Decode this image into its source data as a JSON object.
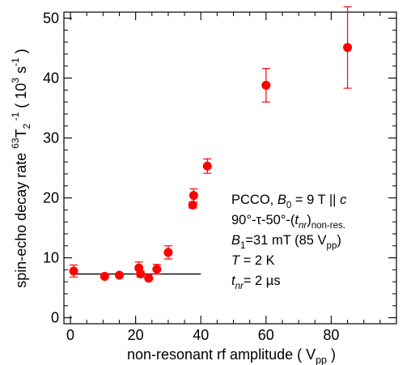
{
  "chart_data": {
    "type": "scatter",
    "xlim": [
      -2,
      100
    ],
    "ylim": [
      -1,
      51
    ],
    "x_ticks": [
      0,
      20,
      40,
      60,
      80
    ],
    "y_ticks": [
      0,
      10,
      20,
      30,
      40,
      50
    ],
    "x_tick_labels": [
      "0",
      "20",
      "40",
      "60",
      "80"
    ],
    "y_tick_labels": [
      "0",
      "10",
      "20",
      "30",
      "40",
      "50"
    ],
    "xlabel": {
      "main": "non-resonant rf amplitude ( V",
      "sub": "pp",
      "tail": " )"
    },
    "ylabel": {
      "lead": "spin-echo decay rate  ",
      "iso_sup": "63",
      "T": "T",
      "sub2": "2",
      "sup_m1": " -1",
      "paren_open": "  ( 10",
      "sup3": "3",
      "s": " s",
      "sup_m1b": "-1",
      "paren_close": " )"
    },
    "points_color": "#ff0000",
    "baseline_color": "#000000",
    "grid": false,
    "points": [
      {
        "x": 1,
        "y": 7.8,
        "err": 1.0
      },
      {
        "x": 10.5,
        "y": 6.9,
        "err": 0.35
      },
      {
        "x": 15,
        "y": 7.1,
        "err": 0.3
      },
      {
        "x": 21,
        "y": 8.3,
        "err": 1.0
      },
      {
        "x": 21.5,
        "y": 7.3,
        "err": 0.5
      },
      {
        "x": 24,
        "y": 6.6,
        "err": 0.3
      },
      {
        "x": 26.5,
        "y": 8.1,
        "err": 0.8
      },
      {
        "x": 30,
        "y": 10.9,
        "err": 1.1
      },
      {
        "x": 37.5,
        "y": 18.8,
        "err": 0.5
      },
      {
        "x": 37.8,
        "y": 20.4,
        "err": 1.1
      },
      {
        "x": 42,
        "y": 25.3,
        "err": 1.2
      },
      {
        "x": 60,
        "y": 38.8,
        "err": 2.8
      },
      {
        "x": 85,
        "y": 45.1,
        "err": 6.8
      }
    ],
    "baseline": {
      "x1": 0,
      "x2": 40,
      "y": 7.3
    },
    "annotations": [
      [
        {
          "t": "PCCO, "
        },
        {
          "t": "B",
          "i": true
        },
        {
          "t": "0",
          "sub": true
        },
        {
          "t": " = 9 T || "
        },
        {
          "t": "c",
          "i": true
        }
      ],
      [
        {
          "t": "90°-τ-50°-("
        },
        {
          "t": "t",
          "i": true
        },
        {
          "t": "nr",
          "sub": true,
          "i": true
        },
        {
          "t": ")"
        },
        {
          "t": "non-res.",
          "sub": true
        }
      ],
      [
        {
          "t": "B",
          "i": true
        },
        {
          "t": "1",
          "sub": true
        },
        {
          "t": "=31 mT (85 V"
        },
        {
          "t": "pp",
          "sub": true
        },
        {
          "t": ")"
        }
      ],
      [
        {
          "t": "T",
          "i": true
        },
        {
          "t": " = 2 K"
        }
      ],
      [
        {
          "t": "t",
          "i": true
        },
        {
          "t": "nr",
          "sub": true,
          "i": true
        },
        {
          "t": "= 2 µs"
        }
      ]
    ]
  }
}
